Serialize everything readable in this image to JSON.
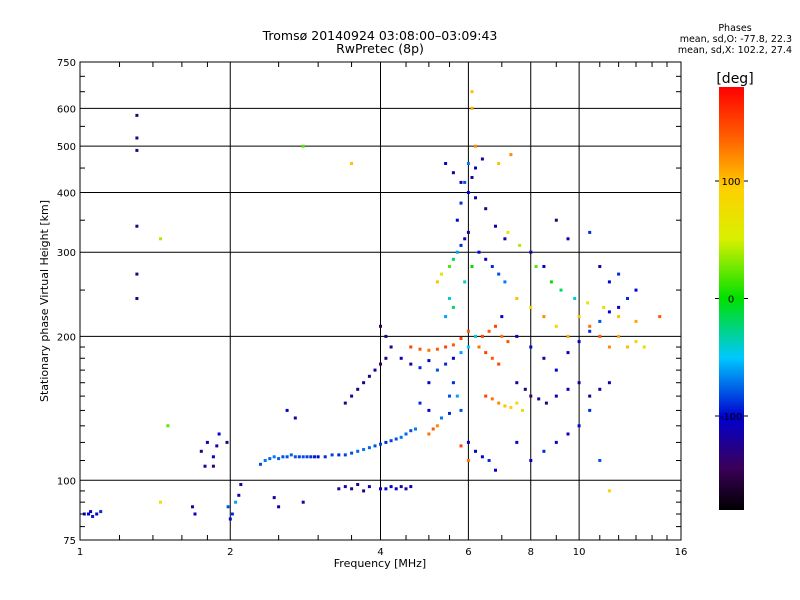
{
  "chart_data": {
    "type": "scatter",
    "title": "Tromsø 20140924 03:08:00–03:09:43",
    "subtitle": "RwPretec (8p)",
    "xlabel": "Frequency [MHz]",
    "ylabel": "Stationary phase Virtual Height [km]",
    "x_scale": "log",
    "y_scale": "log",
    "xlim": [
      1,
      16
    ],
    "ylim": [
      75,
      750
    ],
    "x_ticks": [
      1,
      2,
      4,
      6,
      8,
      10,
      16
    ],
    "y_ticks": [
      75,
      100,
      200,
      300,
      400,
      500,
      600,
      750
    ],
    "grid": true,
    "phase_info": {
      "title": "Phases",
      "line_o": "mean, sd,O: -77.8, 22.3",
      "line_x": "mean, sd,X: 102.2, 27.4"
    },
    "colorbar": {
      "label": "[deg]",
      "ticks": [
        100,
        0,
        -100
      ],
      "range": [
        -180,
        180
      ]
    },
    "points": [
      [
        1.02,
        85,
        -100
      ],
      [
        1.04,
        85,
        -100
      ],
      [
        1.06,
        84,
        -95
      ],
      [
        1.08,
        85,
        -100
      ],
      [
        1.1,
        86,
        -90
      ],
      [
        1.05,
        86,
        -105
      ],
      [
        1.3,
        580,
        -130
      ],
      [
        1.3,
        520,
        -130
      ],
      [
        1.3,
        490,
        -130
      ],
      [
        1.3,
        340,
        -130
      ],
      [
        1.3,
        270,
        -130
      ],
      [
        1.3,
        240,
        -130
      ],
      [
        1.45,
        320,
        40
      ],
      [
        1.5,
        130,
        20
      ],
      [
        1.45,
        90,
        80
      ],
      [
        1.68,
        88,
        -120
      ],
      [
        1.7,
        85,
        -110
      ],
      [
        1.75,
        115,
        -130
      ],
      [
        1.78,
        107,
        -120
      ],
      [
        1.8,
        120,
        -110
      ],
      [
        1.85,
        112,
        -100
      ],
      [
        1.85,
        107,
        -140
      ],
      [
        1.88,
        118,
        -120
      ],
      [
        1.9,
        125,
        -100
      ],
      [
        1.97,
        120,
        -130
      ],
      [
        1.98,
        88,
        -80
      ],
      [
        2.0,
        83,
        -100
      ],
      [
        2.02,
        85,
        -90
      ],
      [
        2.05,
        90,
        -60
      ],
      [
        2.08,
        93,
        -120
      ],
      [
        2.1,
        98,
        -120
      ],
      [
        2.3,
        108,
        -80
      ],
      [
        2.35,
        110,
        -70
      ],
      [
        2.4,
        111,
        -75
      ],
      [
        2.45,
        112,
        -70
      ],
      [
        2.5,
        111,
        -75
      ],
      [
        2.55,
        112,
        -80
      ],
      [
        2.6,
        112,
        -80
      ],
      [
        2.65,
        113,
        -75
      ],
      [
        2.7,
        112,
        -80
      ],
      [
        2.75,
        112,
        -85
      ],
      [
        2.8,
        112,
        -80
      ],
      [
        2.85,
        112,
        -85
      ],
      [
        2.9,
        112,
        -90
      ],
      [
        2.95,
        112,
        -95
      ],
      [
        3.0,
        112,
        -100
      ],
      [
        3.1,
        112,
        -90
      ],
      [
        3.2,
        113,
        -85
      ],
      [
        3.3,
        113,
        -90
      ],
      [
        3.4,
        113,
        -85
      ],
      [
        3.5,
        114,
        -80
      ],
      [
        3.6,
        115,
        -75
      ],
      [
        3.7,
        116,
        -70
      ],
      [
        3.8,
        117,
        -75
      ],
      [
        3.9,
        118,
        -80
      ],
      [
        4.0,
        119,
        -85
      ],
      [
        4.1,
        120,
        -90
      ],
      [
        4.2,
        121,
        -85
      ],
      [
        4.3,
        122,
        -80
      ],
      [
        4.4,
        123,
        -70
      ],
      [
        4.5,
        125,
        -75
      ],
      [
        4.6,
        127,
        -80
      ],
      [
        4.7,
        128,
        -70
      ],
      [
        2.45,
        92,
        -120
      ],
      [
        2.5,
        88,
        -110
      ],
      [
        2.8,
        90,
        -120
      ],
      [
        3.3,
        96,
        -120
      ],
      [
        3.4,
        97,
        -120
      ],
      [
        3.5,
        96,
        -130
      ],
      [
        3.6,
        98,
        -125
      ],
      [
        3.7,
        95,
        -130
      ],
      [
        3.8,
        97,
        -115
      ],
      [
        4.0,
        96,
        -110
      ],
      [
        4.1,
        96,
        -100
      ],
      [
        4.2,
        97,
        -110
      ],
      [
        4.3,
        96,
        -105
      ],
      [
        4.4,
        97,
        -120
      ],
      [
        4.5,
        96,
        -115
      ],
      [
        4.6,
        97,
        -110
      ],
      [
        3.4,
        145,
        -130
      ],
      [
        3.5,
        150,
        -120
      ],
      [
        3.6,
        155,
        -130
      ],
      [
        3.7,
        160,
        -125
      ],
      [
        3.8,
        165,
        -130
      ],
      [
        3.9,
        170,
        -120
      ],
      [
        4.0,
        175,
        -135
      ],
      [
        4.1,
        180,
        -130
      ],
      [
        4.0,
        210,
        -140
      ],
      [
        4.1,
        200,
        -130
      ],
      [
        4.2,
        190,
        -120
      ],
      [
        4.4,
        180,
        -110
      ],
      [
        4.6,
        175,
        -120
      ],
      [
        4.8,
        172,
        -90
      ],
      [
        5.0,
        178,
        -100
      ],
      [
        4.6,
        190,
        150
      ],
      [
        4.8,
        188,
        140
      ],
      [
        5.0,
        187,
        130
      ],
      [
        5.2,
        188,
        140
      ],
      [
        5.4,
        190,
        150
      ],
      [
        5.6,
        192,
        140
      ],
      [
        5.8,
        198,
        150
      ],
      [
        6.0,
        205,
        140
      ],
      [
        5.5,
        150,
        -80
      ],
      [
        5.6,
        160,
        -90
      ],
      [
        5.7,
        150,
        -60
      ],
      [
        5.8,
        140,
        -80
      ],
      [
        5.5,
        138,
        -90
      ],
      [
        5.3,
        135,
        -70
      ],
      [
        5.0,
        140,
        -100
      ],
      [
        4.8,
        145,
        -90
      ],
      [
        5.1,
        128,
        140
      ],
      [
        5.0,
        125,
        130
      ],
      [
        5.2,
        130,
        120
      ],
      [
        5.2,
        260,
        100
      ],
      [
        5.3,
        270,
        60
      ],
      [
        5.5,
        280,
        20
      ],
      [
        5.6,
        290,
        -20
      ],
      [
        5.7,
        300,
        -60
      ],
      [
        5.8,
        310,
        -90
      ],
      [
        5.9,
        320,
        -110
      ],
      [
        6.0,
        330,
        -120
      ],
      [
        5.7,
        350,
        -100
      ],
      [
        5.8,
        380,
        -90
      ],
      [
        5.9,
        420,
        -80
      ],
      [
        6.0,
        460,
        -70
      ],
      [
        6.1,
        430,
        -120
      ],
      [
        6.2,
        500,
        120
      ],
      [
        6.1,
        650,
        100
      ],
      [
        6.1,
        600,
        110
      ],
      [
        5.5,
        240,
        -40
      ],
      [
        5.6,
        230,
        -20
      ],
      [
        5.4,
        220,
        -60
      ],
      [
        5.9,
        260,
        -40
      ],
      [
        6.1,
        280,
        0
      ],
      [
        6.3,
        300,
        -100
      ],
      [
        6.5,
        290,
        -110
      ],
      [
        6.7,
        280,
        -90
      ],
      [
        6.9,
        270,
        -80
      ],
      [
        7.1,
        260,
        -70
      ],
      [
        6.4,
        200,
        150
      ],
      [
        6.6,
        205,
        140
      ],
      [
        6.8,
        210,
        150
      ],
      [
        7.0,
        200,
        130
      ],
      [
        7.2,
        195,
        140
      ],
      [
        6.3,
        190,
        130
      ],
      [
        6.5,
        185,
        150
      ],
      [
        6.7,
        180,
        140
      ],
      [
        6.9,
        175,
        150
      ],
      [
        6.5,
        150,
        150
      ],
      [
        6.7,
        148,
        130
      ],
      [
        6.9,
        145,
        120
      ],
      [
        7.1,
        143,
        100
      ],
      [
        7.3,
        142,
        90
      ],
      [
        7.5,
        145,
        80
      ],
      [
        7.7,
        140,
        70
      ],
      [
        7.5,
        160,
        -120
      ],
      [
        7.8,
        155,
        -130
      ],
      [
        8.0,
        150,
        -140
      ],
      [
        8.3,
        148,
        -120
      ],
      [
        8.6,
        145,
        -130
      ],
      [
        9.0,
        150,
        -120
      ],
      [
        9.5,
        155,
        -110
      ],
      [
        10.0,
        160,
        -120
      ],
      [
        10.5,
        150,
        -130
      ],
      [
        11.0,
        155,
        -120
      ],
      [
        11.5,
        160,
        -110
      ],
      [
        7.5,
        240,
        100
      ],
      [
        8.0,
        230,
        80
      ],
      [
        8.5,
        220,
        120
      ],
      [
        9.0,
        210,
        90
      ],
      [
        9.5,
        200,
        110
      ],
      [
        10.0,
        220,
        100
      ],
      [
        10.5,
        210,
        130
      ],
      [
        11.0,
        200,
        140
      ],
      [
        11.5,
        190,
        120
      ],
      [
        12.0,
        200,
        110
      ],
      [
        12.5,
        190,
        100
      ],
      [
        13.0,
        195,
        90
      ],
      [
        13.5,
        190,
        80
      ],
      [
        7.0,
        220,
        -100
      ],
      [
        7.5,
        200,
        -110
      ],
      [
        8.0,
        190,
        -100
      ],
      [
        8.5,
        180,
        -120
      ],
      [
        9.0,
        170,
        -100
      ],
      [
        9.5,
        185,
        -110
      ],
      [
        10.0,
        195,
        -100
      ],
      [
        10.5,
        205,
        -90
      ],
      [
        11.0,
        215,
        -80
      ],
      [
        11.5,
        225,
        -100
      ],
      [
        12.0,
        230,
        -110
      ],
      [
        12.5,
        240,
        -90
      ],
      [
        13.0,
        250,
        -100
      ],
      [
        8.0,
        300,
        -120
      ],
      [
        8.5,
        280,
        -100
      ],
      [
        9.0,
        350,
        -130
      ],
      [
        9.5,
        320,
        -110
      ],
      [
        10.5,
        330,
        -90
      ],
      [
        11.0,
        280,
        -120
      ],
      [
        11.5,
        260,
        -100
      ],
      [
        12.0,
        270,
        -90
      ],
      [
        7.5,
        120,
        -100
      ],
      [
        8.0,
        110,
        -110
      ],
      [
        8.5,
        115,
        -90
      ],
      [
        9.0,
        120,
        -100
      ],
      [
        9.5,
        125,
        -110
      ],
      [
        10.0,
        130,
        -100
      ],
      [
        10.5,
        140,
        -90
      ],
      [
        11.0,
        110,
        -80
      ],
      [
        11.5,
        95,
        90
      ],
      [
        6.0,
        120,
        -100
      ],
      [
        6.2,
        115,
        -110
      ],
      [
        6.4,
        112,
        -100
      ],
      [
        6.6,
        110,
        -90
      ],
      [
        6.8,
        105,
        -100
      ],
      [
        5.8,
        118,
        150
      ],
      [
        6.0,
        110,
        130
      ],
      [
        5.0,
        160,
        -100
      ],
      [
        5.2,
        170,
        -80
      ],
      [
        5.4,
        175,
        -90
      ],
      [
        5.6,
        180,
        -100
      ],
      [
        5.8,
        185,
        -60
      ],
      [
        6.0,
        190,
        -50
      ],
      [
        6.2,
        200,
        -40
      ],
      [
        7.2,
        330,
        60
      ],
      [
        7.6,
        310,
        40
      ],
      [
        8.2,
        280,
        20
      ],
      [
        8.8,
        260,
        0
      ],
      [
        9.2,
        250,
        -20
      ],
      [
        9.8,
        240,
        -40
      ],
      [
        10.4,
        235,
        60
      ],
      [
        11.2,
        230,
        80
      ],
      [
        12.0,
        220,
        100
      ],
      [
        13.0,
        215,
        110
      ],
      [
        14.5,
        220,
        140
      ],
      [
        7.1,
        320,
        -120
      ],
      [
        6.8,
        340,
        -110
      ],
      [
        6.5,
        370,
        -130
      ],
      [
        6.2,
        390,
        -120
      ],
      [
        6.0,
        400,
        -100
      ],
      [
        5.8,
        420,
        -110
      ],
      [
        5.6,
        440,
        -120
      ],
      [
        5.4,
        460,
        -100
      ],
      [
        7.3,
        480,
        120
      ],
      [
        6.9,
        460,
        100
      ],
      [
        6.4,
        470,
        -120
      ],
      [
        6.2,
        450,
        -110
      ],
      [
        3.5,
        460,
        100
      ],
      [
        2.8,
        500,
        20
      ],
      [
        2.6,
        140,
        -100
      ],
      [
        2.7,
        135,
        -120
      ]
    ]
  }
}
